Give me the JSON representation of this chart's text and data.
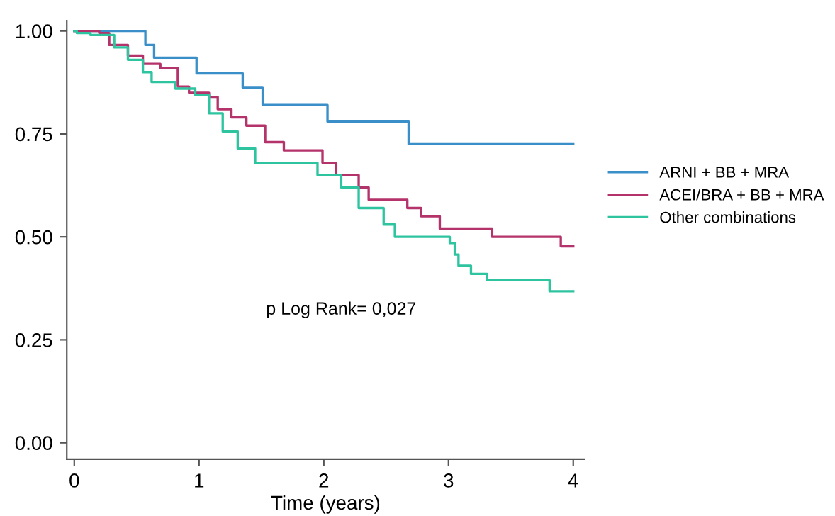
{
  "chart_data": {
    "type": "step",
    "xlabel": "Time (years)",
    "annotations": [
      "p Log Rank= 0,027"
    ],
    "xlim": [
      -0.06,
      4.09
    ],
    "ylim": [
      -0.04,
      1.025
    ],
    "xticks": [
      0,
      1,
      2,
      3,
      4
    ],
    "yticks": [
      {
        "value": 0,
        "label": "0.00"
      },
      {
        "value": 0.25,
        "label": "0.25"
      },
      {
        "value": 0.5,
        "label": "0.50"
      },
      {
        "value": 0.75,
        "label": "0.75"
      },
      {
        "value": 1,
        "label": "1.00"
      }
    ],
    "grid": false,
    "legend": "right",
    "marker": "none",
    "line_style": "solid",
    "series": [
      {
        "name": "ARNI + BB + MRA",
        "color": "#3a8fc9",
        "x": [
          0,
          0.57,
          0.64,
          0.98,
          1.35,
          1.51,
          2.03,
          2.68,
          4.0
        ],
        "values": [
          1.0,
          0.966,
          0.935,
          0.897,
          0.862,
          0.82,
          0.78,
          0.725,
          0.725
        ]
      },
      {
        "name": "ACEI/BRA + BB + MRA",
        "color": "#b5336b",
        "x": [
          0,
          0.2,
          0.28,
          0.43,
          0.55,
          0.69,
          0.83,
          0.92,
          1.08,
          1.15,
          1.26,
          1.38,
          1.53,
          1.68,
          1.99,
          2.1,
          2.28,
          2.36,
          2.67,
          2.78,
          2.93,
          3.35,
          3.9,
          4.0
        ],
        "values": [
          1.0,
          0.995,
          0.966,
          0.94,
          0.92,
          0.91,
          0.865,
          0.85,
          0.84,
          0.81,
          0.79,
          0.77,
          0.73,
          0.71,
          0.68,
          0.65,
          0.62,
          0.59,
          0.57,
          0.55,
          0.52,
          0.5,
          0.477,
          0.477
        ]
      },
      {
        "name": "Other combinations",
        "color": "#2ec4a0",
        "x": [
          0,
          0.02,
          0.13,
          0.32,
          0.43,
          0.55,
          0.62,
          0.81,
          0.97,
          1.08,
          1.19,
          1.31,
          1.45,
          1.95,
          2.14,
          2.28,
          2.48,
          2.57,
          3.01,
          3.05,
          3.08,
          3.18,
          3.31,
          3.81,
          4.0
        ],
        "values": [
          1.0,
          0.995,
          0.99,
          0.96,
          0.93,
          0.9,
          0.876,
          0.86,
          0.845,
          0.8,
          0.756,
          0.715,
          0.68,
          0.65,
          0.62,
          0.57,
          0.53,
          0.5,
          0.485,
          0.457,
          0.43,
          0.41,
          0.395,
          0.368,
          0.368
        ]
      }
    ]
  }
}
